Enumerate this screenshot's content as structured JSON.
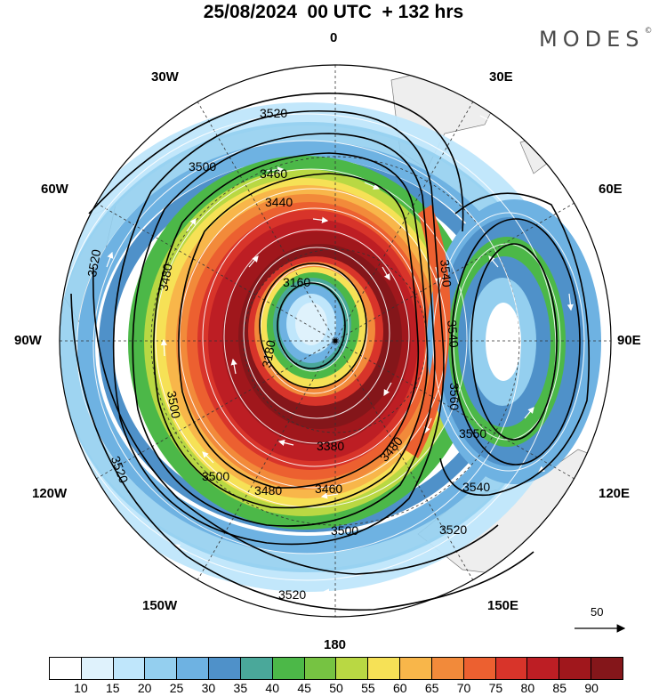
{
  "title": "25/08/2024  00 UTC  + 132 hrs",
  "brand": "MODES",
  "brand_mark": "©",
  "longitudes": {
    "top": "0",
    "bottom": "180",
    "left": "90W",
    "right": "90E",
    "nw1": "30W",
    "nw2": "60W",
    "ne1": "30E",
    "ne2": "60E",
    "sw1": "120W",
    "sw2": "150W",
    "se1": "120E",
    "se2": "150E"
  },
  "contour_labels": [
    "3520",
    "3500",
    "3460",
    "3440",
    "3480",
    "3160",
    "3180",
    "3520",
    "3500",
    "3540",
    "3540",
    "3550",
    "3540",
    "3560",
    "3520",
    "3500",
    "3480",
    "3460",
    "3380",
    "3480",
    "3500",
    "3520",
    "3520"
  ],
  "reference_vector": "50",
  "colorbar": {
    "colors": [
      "#ffffff",
      "#dff2fc",
      "#bfe6fb",
      "#94cfef",
      "#6eb2e2",
      "#4f91c9",
      "#4aa89a",
      "#4cb848",
      "#76c342",
      "#b9d843",
      "#f6e156",
      "#f8b64a",
      "#f28a3a",
      "#ec6030",
      "#d8342a",
      "#bd1e24",
      "#a0171c",
      "#84161a"
    ],
    "ticks": [
      "10",
      "15",
      "20",
      "25",
      "30",
      "35",
      "40",
      "45",
      "50",
      "55",
      "60",
      "65",
      "70",
      "75",
      "80",
      "85",
      "90"
    ]
  }
}
